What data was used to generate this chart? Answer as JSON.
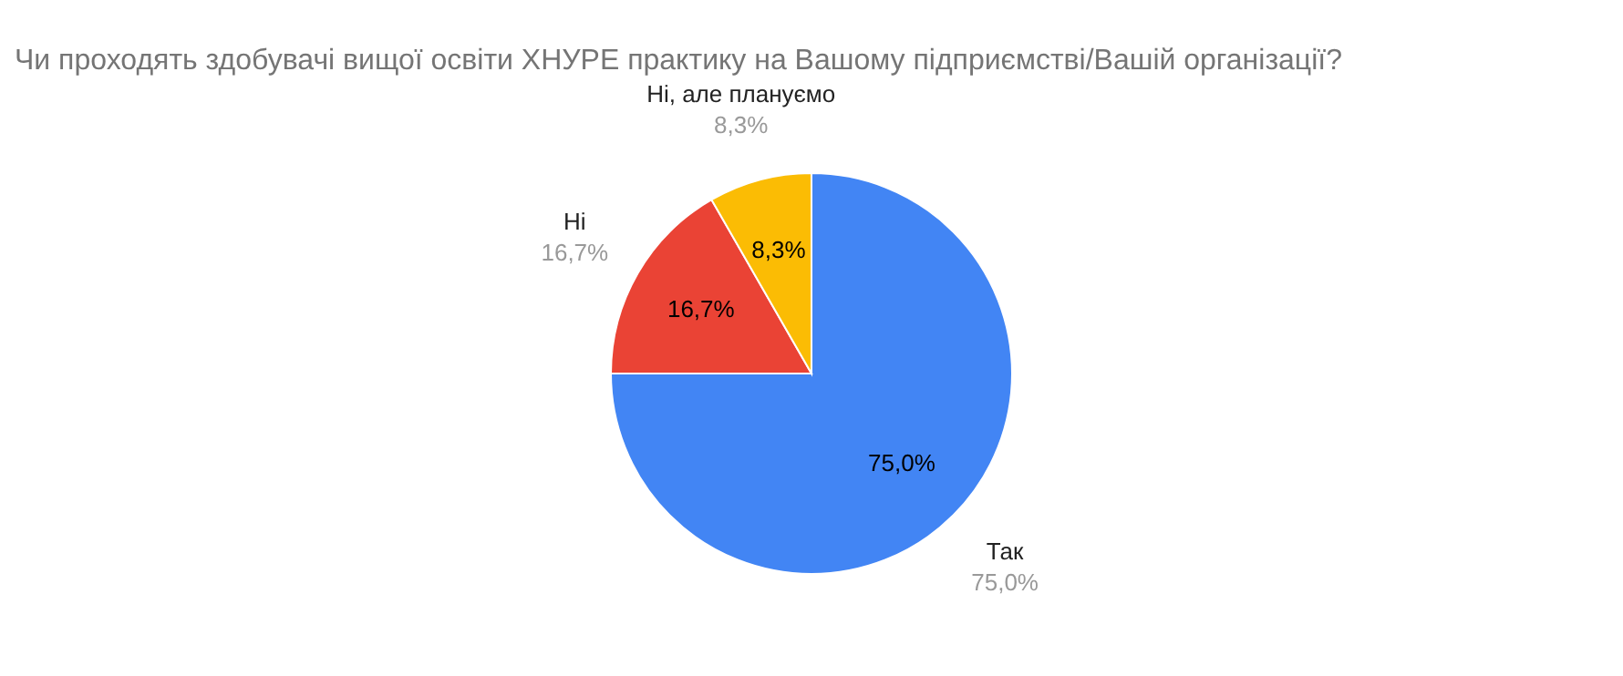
{
  "chart_data": {
    "type": "pie",
    "title": "Чи проходять здобувачі вищої освіти ХНУРЕ практику на Вашому підприємстві/Вашій організації?",
    "categories": [
      "Так",
      "Ні",
      "Ні, але плануємо"
    ],
    "values": [
      75.0,
      16.7,
      8.3
    ],
    "colors": [
      "#4285f4",
      "#ea4335",
      "#fbbc04"
    ],
    "value_labels": [
      "75,0%",
      "16,7%",
      "8,3%"
    ]
  }
}
